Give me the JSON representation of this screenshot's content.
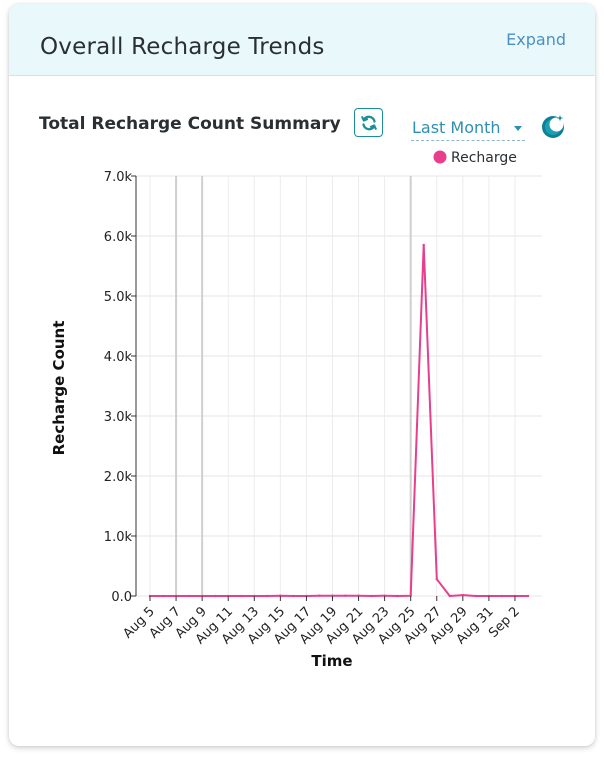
{
  "card": {
    "title": "Overall Recharge Trends",
    "expand_label": "Expand"
  },
  "controls": {
    "chart_title": "Total Recharge Count Summary",
    "range_label": "Last Month",
    "refresh_icon": "refresh-icon",
    "theme_icon": "theme-toggle-icon"
  },
  "colors": {
    "series": "#e83e8c",
    "accent": "#1a8f95",
    "header_bg": "#e9f9fb"
  },
  "chart_data": {
    "type": "line",
    "title": "Total Recharge Count Summary",
    "xlabel": "Time",
    "ylabel": "Recharge Count",
    "legend": [
      "Recharge"
    ],
    "legend_position": "top-right",
    "ylim": [
      0,
      7000
    ],
    "y_ticks": [
      "0.0",
      "1.0k",
      "2.0k",
      "3.0k",
      "4.0k",
      "5.0k",
      "6.0k",
      "7.0k"
    ],
    "x_tick_labels": [
      "Aug 5",
      "Aug 7",
      "Aug 9",
      "Aug 11",
      "Aug 13",
      "Aug 15",
      "Aug 17",
      "Aug 19",
      "Aug 21",
      "Aug 23",
      "Aug 25",
      "Aug 27",
      "Aug 29",
      "Aug 31",
      "Sep 2"
    ],
    "x": [
      "Aug 5",
      "Aug 6",
      "Aug 7",
      "Aug 8",
      "Aug 9",
      "Aug 10",
      "Aug 11",
      "Aug 12",
      "Aug 13",
      "Aug 14",
      "Aug 15",
      "Aug 16",
      "Aug 17",
      "Aug 18",
      "Aug 19",
      "Aug 20",
      "Aug 21",
      "Aug 22",
      "Aug 23",
      "Aug 24",
      "Aug 25",
      "Aug 26",
      "Aug 27",
      "Aug 28",
      "Aug 29",
      "Aug 30",
      "Aug 31",
      "Sep 1",
      "Sep 2",
      "Sep 3"
    ],
    "series": [
      {
        "name": "Recharge",
        "values": [
          0,
          0,
          0,
          0,
          0,
          0,
          0,
          0,
          0,
          0,
          5,
          0,
          0,
          5,
          5,
          5,
          5,
          0,
          5,
          0,
          5,
          5850,
          280,
          0,
          15,
          0,
          0,
          0,
          0,
          0
        ]
      }
    ],
    "highlighted_x": [
      "Aug 7",
      "Aug 9",
      "Aug 25"
    ]
  }
}
